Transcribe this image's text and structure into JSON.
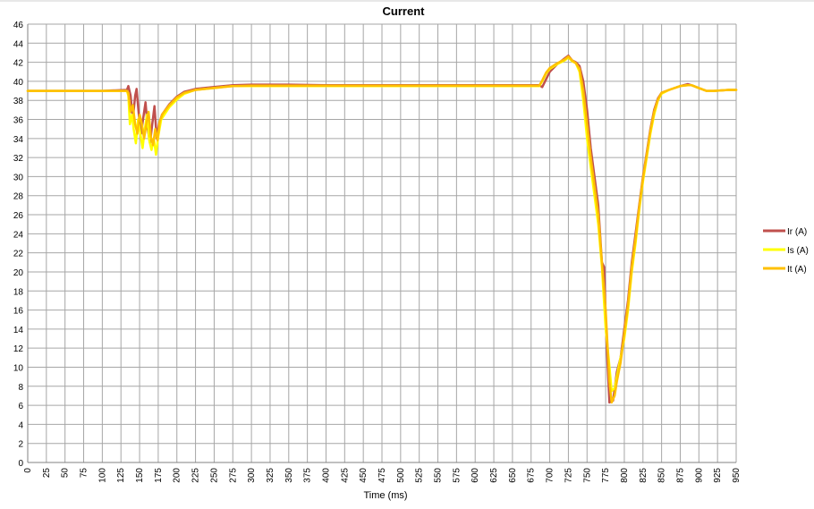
{
  "chart_data": {
    "type": "line",
    "title": "Current",
    "xlabel": "Time (ms)",
    "ylabel": "",
    "xlim": [
      0,
      950
    ],
    "ylim": [
      0,
      46
    ],
    "x_step": 25,
    "y_step": 2,
    "grid": true,
    "legend_position": "right",
    "series": [
      {
        "name": "Ir (A)",
        "color": "#C0504D",
        "points": [
          [
            0,
            39
          ],
          [
            50,
            39
          ],
          [
            100,
            39
          ],
          [
            133,
            39.1
          ],
          [
            135,
            39.5
          ],
          [
            138,
            38.5
          ],
          [
            141,
            36
          ],
          [
            144,
            38.5
          ],
          [
            146,
            39.2
          ],
          [
            149,
            36.5
          ],
          [
            152,
            34.5
          ],
          [
            155,
            36.2
          ],
          [
            158,
            37.8
          ],
          [
            161,
            35
          ],
          [
            164,
            33.5
          ],
          [
            167,
            35.5
          ],
          [
            170,
            37.4
          ],
          [
            173,
            34
          ],
          [
            176,
            35.5
          ],
          [
            180,
            36.5
          ],
          [
            190,
            37.6
          ],
          [
            200,
            38.4
          ],
          [
            210,
            38.9
          ],
          [
            225,
            39.2
          ],
          [
            250,
            39.4
          ],
          [
            275,
            39.6
          ],
          [
            300,
            39.65
          ],
          [
            325,
            39.65
          ],
          [
            350,
            39.65
          ],
          [
            400,
            39.6
          ],
          [
            450,
            39.6
          ],
          [
            500,
            39.6
          ],
          [
            550,
            39.6
          ],
          [
            600,
            39.6
          ],
          [
            650,
            39.6
          ],
          [
            686,
            39.6
          ],
          [
            690,
            39.4
          ],
          [
            695,
            40.2
          ],
          [
            700,
            41
          ],
          [
            710,
            41.8
          ],
          [
            720,
            42.4
          ],
          [
            725,
            42.7
          ],
          [
            730,
            42.2
          ],
          [
            735,
            42
          ],
          [
            740,
            41.6
          ],
          [
            745,
            40
          ],
          [
            750,
            37
          ],
          [
            755,
            33
          ],
          [
            760,
            30
          ],
          [
            765,
            27
          ],
          [
            770,
            21
          ],
          [
            773,
            20.5
          ],
          [
            776,
            13
          ],
          [
            780,
            6.3
          ],
          [
            785,
            6.5
          ],
          [
            790,
            9.5
          ],
          [
            795,
            11
          ],
          [
            800,
            14
          ],
          [
            805,
            17
          ],
          [
            810,
            21
          ],
          [
            815,
            24
          ],
          [
            820,
            27
          ],
          [
            825,
            30
          ],
          [
            830,
            32.5
          ],
          [
            835,
            35
          ],
          [
            840,
            37
          ],
          [
            845,
            38.2
          ],
          [
            850,
            38.8
          ],
          [
            860,
            39.1
          ],
          [
            875,
            39.5
          ],
          [
            885,
            39.7
          ],
          [
            890,
            39.6
          ],
          [
            900,
            39.3
          ],
          [
            910,
            39
          ],
          [
            920,
            39
          ],
          [
            940,
            39.1
          ],
          [
            950,
            39.1
          ]
        ]
      },
      {
        "name": "Is (A)",
        "color": "#FFFF00",
        "points": [
          [
            0,
            39
          ],
          [
            50,
            39
          ],
          [
            100,
            39
          ],
          [
            133,
            39
          ],
          [
            135,
            38.5
          ],
          [
            137,
            35.5
          ],
          [
            140,
            36.5
          ],
          [
            142,
            35
          ],
          [
            145,
            33.5
          ],
          [
            148,
            36
          ],
          [
            151,
            34.5
          ],
          [
            154,
            33
          ],
          [
            157,
            35
          ],
          [
            160,
            36.5
          ],
          [
            163,
            33.8
          ],
          [
            166,
            32.8
          ],
          [
            169,
            34
          ],
          [
            172,
            32.3
          ],
          [
            175,
            34.2
          ],
          [
            179,
            36
          ],
          [
            190,
            37.3
          ],
          [
            200,
            38.1
          ],
          [
            210,
            38.7
          ],
          [
            225,
            39.1
          ],
          [
            250,
            39.3
          ],
          [
            275,
            39.5
          ],
          [
            300,
            39.5
          ],
          [
            350,
            39.5
          ],
          [
            400,
            39.5
          ],
          [
            450,
            39.5
          ],
          [
            500,
            39.5
          ],
          [
            550,
            39.5
          ],
          [
            600,
            39.5
          ],
          [
            650,
            39.5
          ],
          [
            686,
            39.5
          ],
          [
            690,
            40
          ],
          [
            695,
            40.8
          ],
          [
            700,
            41.3
          ],
          [
            710,
            41.8
          ],
          [
            720,
            42.2
          ],
          [
            725,
            42.5
          ],
          [
            730,
            42.1
          ],
          [
            735,
            41.9
          ],
          [
            740,
            41
          ],
          [
            745,
            38
          ],
          [
            750,
            34
          ],
          [
            755,
            31
          ],
          [
            760,
            28
          ],
          [
            765,
            25
          ],
          [
            770,
            20.5
          ],
          [
            775,
            14
          ],
          [
            779,
            11
          ],
          [
            783,
            7.5
          ],
          [
            787,
            7.8
          ],
          [
            790,
            9
          ],
          [
            795,
            11
          ],
          [
            800,
            13
          ],
          [
            805,
            16
          ],
          [
            810,
            20
          ],
          [
            815,
            23
          ],
          [
            820,
            26.5
          ],
          [
            825,
            29.5
          ],
          [
            830,
            32
          ],
          [
            835,
            34.5
          ],
          [
            840,
            36.5
          ],
          [
            845,
            38
          ],
          [
            850,
            38.7
          ],
          [
            860,
            39.1
          ],
          [
            875,
            39.5
          ],
          [
            885,
            39.6
          ],
          [
            890,
            39.6
          ],
          [
            900,
            39.3
          ],
          [
            910,
            39
          ],
          [
            920,
            39
          ],
          [
            940,
            39.1
          ],
          [
            950,
            39.1
          ]
        ]
      },
      {
        "name": "It (A)",
        "color": "#FFC000",
        "points": [
          [
            0,
            39
          ],
          [
            50,
            39
          ],
          [
            100,
            39
          ],
          [
            133,
            39
          ],
          [
            135,
            38.8
          ],
          [
            138,
            36.8
          ],
          [
            141,
            37.5
          ],
          [
            144,
            35.5
          ],
          [
            147,
            34.5
          ],
          [
            150,
            36.5
          ],
          [
            153,
            35.5
          ],
          [
            156,
            34
          ],
          [
            159,
            35.5
          ],
          [
            162,
            36.8
          ],
          [
            165,
            34.2
          ],
          [
            168,
            33.3
          ],
          [
            171,
            35
          ],
          [
            174,
            33.8
          ],
          [
            177,
            35.8
          ],
          [
            181,
            36.6
          ],
          [
            190,
            37.5
          ],
          [
            200,
            38.3
          ],
          [
            210,
            38.8
          ],
          [
            225,
            39.1
          ],
          [
            250,
            39.3
          ],
          [
            275,
            39.5
          ],
          [
            300,
            39.55
          ],
          [
            350,
            39.55
          ],
          [
            400,
            39.55
          ],
          [
            450,
            39.55
          ],
          [
            500,
            39.55
          ],
          [
            550,
            39.55
          ],
          [
            600,
            39.55
          ],
          [
            650,
            39.55
          ],
          [
            686,
            39.55
          ],
          [
            690,
            40.1
          ],
          [
            695,
            40.9
          ],
          [
            700,
            41.4
          ],
          [
            710,
            41.9
          ],
          [
            720,
            42.3
          ],
          [
            725,
            42.6
          ],
          [
            730,
            42.2
          ],
          [
            735,
            41.9
          ],
          [
            740,
            41.3
          ],
          [
            745,
            39
          ],
          [
            750,
            35.5
          ],
          [
            755,
            32
          ],
          [
            760,
            29
          ],
          [
            765,
            26
          ],
          [
            770,
            21
          ],
          [
            775,
            16
          ],
          [
            780,
            8.5
          ],
          [
            783,
            6.3
          ],
          [
            787,
            7
          ],
          [
            790,
            8.5
          ],
          [
            795,
            10.5
          ],
          [
            800,
            13.5
          ],
          [
            805,
            16.5
          ],
          [
            810,
            20.5
          ],
          [
            815,
            23.5
          ],
          [
            820,
            26.8
          ],
          [
            825,
            29.8
          ],
          [
            830,
            32.3
          ],
          [
            835,
            34.8
          ],
          [
            840,
            36.8
          ],
          [
            845,
            38.1
          ],
          [
            850,
            38.8
          ],
          [
            860,
            39.1
          ],
          [
            875,
            39.5
          ],
          [
            885,
            39.6
          ],
          [
            890,
            39.6
          ],
          [
            900,
            39.3
          ],
          [
            910,
            39
          ],
          [
            920,
            39
          ],
          [
            940,
            39.1
          ],
          [
            950,
            39.1
          ]
        ]
      }
    ]
  }
}
